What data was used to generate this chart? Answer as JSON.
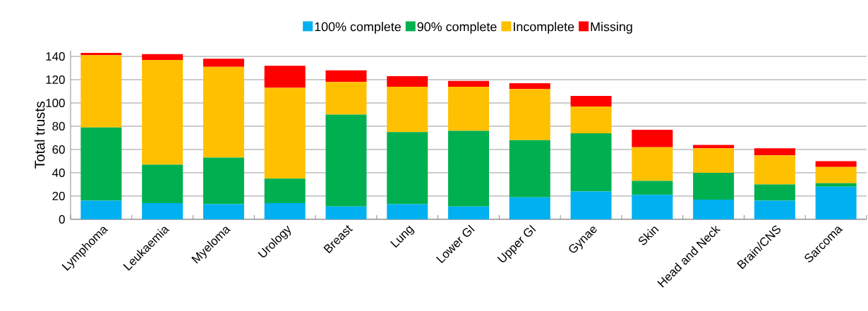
{
  "chart_data": {
    "type": "bar",
    "stacked": true,
    "ylabel": "Total trusts",
    "categories": [
      "Lymphoma",
      "Leukaemia",
      "Myeloma",
      "Urology",
      "Breast",
      "Lung",
      "Lower GI",
      "Upper GI",
      "Gynae",
      "Skin",
      "Head and Neck",
      "Brain/CNS",
      "Sarcoma"
    ],
    "series": [
      {
        "name": "100% complete",
        "color": "#00b0f0",
        "values": [
          16,
          14,
          13,
          14,
          11,
          13,
          11,
          19,
          24,
          21,
          17,
          16,
          28
        ]
      },
      {
        "name": "90% complete",
        "color": "#00b050",
        "values": [
          63,
          33,
          40,
          21,
          79,
          62,
          65,
          49,
          50,
          12,
          23,
          14,
          3
        ]
      },
      {
        "name": "Incomplete",
        "color": "#ffc000",
        "values": [
          62,
          90,
          78,
          78,
          28,
          39,
          38,
          44,
          23,
          29,
          21,
          25,
          14
        ]
      },
      {
        "name": "Missing",
        "color": "#ff0000",
        "values": [
          2,
          5,
          7,
          19,
          10,
          9,
          5,
          5,
          9,
          15,
          3,
          6,
          5
        ]
      }
    ],
    "ylim": [
      0,
      145
    ],
    "yticks": [
      0,
      20,
      40,
      60,
      80,
      100,
      120,
      140
    ],
    "grid": "y",
    "legend": "top"
  }
}
